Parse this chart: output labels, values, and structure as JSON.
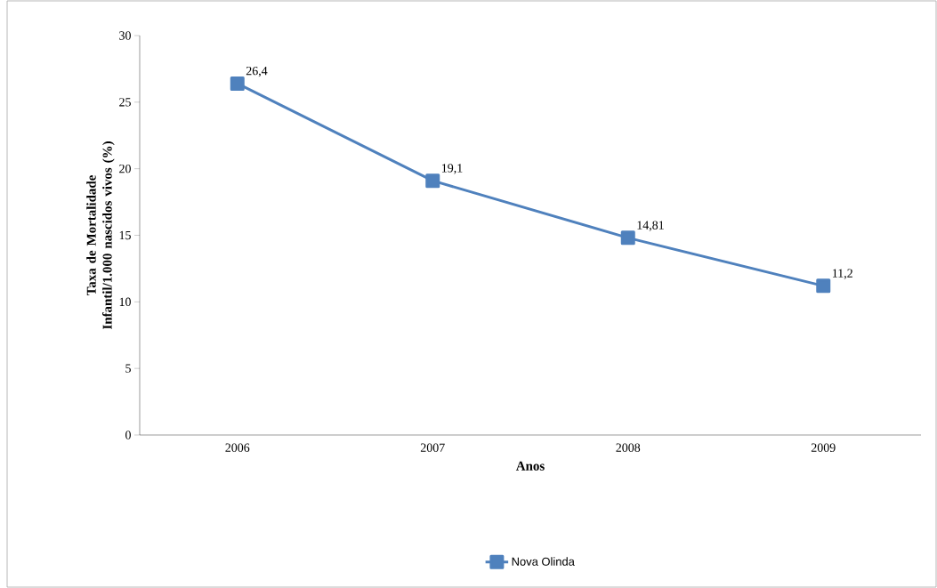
{
  "chart_data": {
    "type": "line",
    "xlabel": "Anos",
    "ylabel": "Taxa de Mortalidade Infantil/1.000 nascidos vivos (%)",
    "categories": [
      "2006",
      "2007",
      "2008",
      "2009"
    ],
    "series": [
      {
        "name": "Nova Olinda",
        "color": "#4f81bd",
        "values": [
          26.4,
          19.1,
          14.81,
          11.2
        ],
        "value_labels": [
          "26,4",
          "19,1",
          "14,81",
          "11,2"
        ]
      }
    ],
    "ylim": [
      0,
      30
    ],
    "yticks": [
      0,
      5,
      10,
      15,
      20,
      25,
      30
    ],
    "legend": "bottom",
    "marker": "square",
    "line_style": "solid"
  }
}
